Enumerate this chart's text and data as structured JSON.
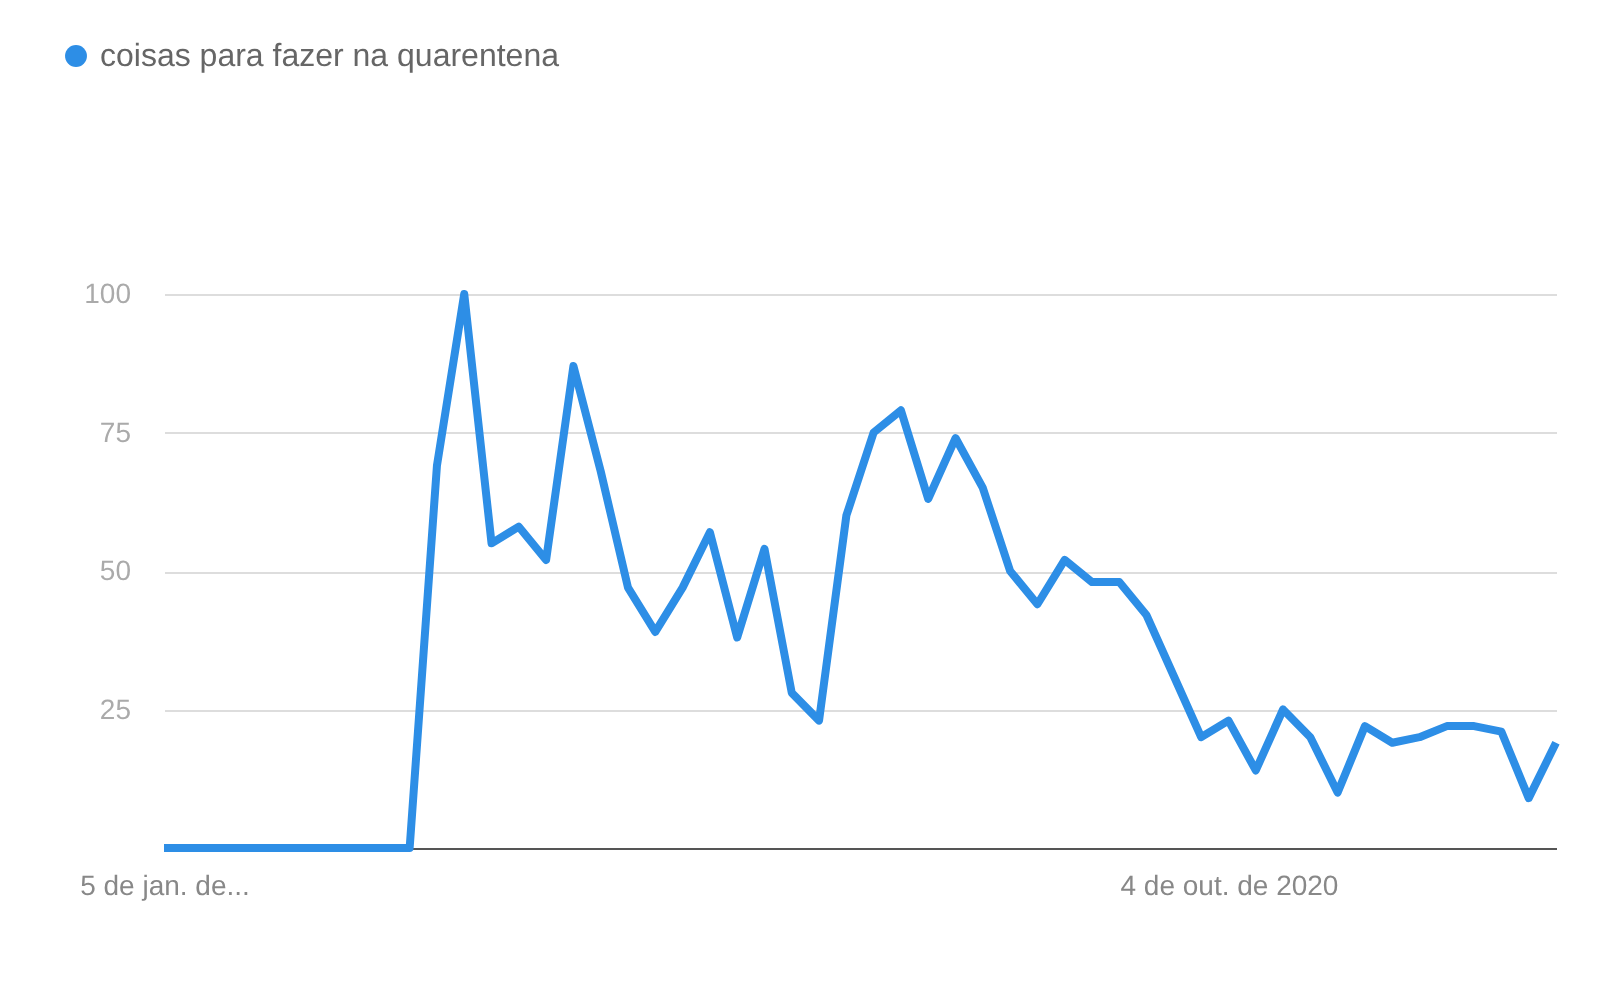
{
  "chart_data": {
    "type": "line",
    "categories": [
      "5 de jan. de...",
      null,
      null,
      null,
      null,
      null,
      null,
      null,
      null,
      null,
      null,
      null,
      null,
      null,
      null,
      null,
      null,
      null,
      null,
      null,
      null,
      null,
      null,
      null,
      null,
      null,
      null,
      null,
      null,
      null,
      null,
      null,
      null,
      null,
      null,
      null,
      null,
      null,
      null,
      "4 de out. de 2020",
      null,
      null,
      null,
      null,
      null,
      null,
      null,
      null,
      null,
      null,
      null,
      null
    ],
    "series": [
      {
        "name": "coisas para fazer na quarentena",
        "color": "#2d8ee6",
        "values": [
          0,
          0,
          0,
          0,
          0,
          0,
          0,
          0,
          0,
          0,
          69,
          100,
          55,
          58,
          52,
          87,
          68,
          47,
          39,
          47,
          57,
          38,
          54,
          28,
          23,
          60,
          75,
          79,
          63,
          74,
          65,
          50,
          44,
          52,
          48,
          48,
          42,
          31,
          20,
          23,
          14,
          25,
          20,
          10,
          22,
          19,
          20,
          22,
          22,
          21,
          9,
          19
        ]
      }
    ],
    "ylim": [
      0,
      100
    ],
    "yticks": [
      25,
      50,
      75,
      100
    ],
    "grid": "y",
    "legend": "top left",
    "marker": "none",
    "line_style": "solid"
  }
}
